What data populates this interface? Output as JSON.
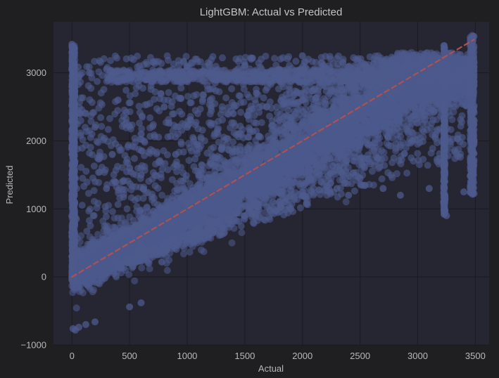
{
  "chart_data": {
    "type": "scatter",
    "title": "LightGBM: Actual vs Predicted",
    "xlabel": "Actual",
    "ylabel": "Predicted",
    "xlim": [
      -160,
      3620
    ],
    "ylim": [
      -1000,
      3750
    ],
    "xticks": [
      0,
      500,
      1000,
      1500,
      2000,
      2500,
      3000,
      3500
    ],
    "yticks": [
      -1000,
      0,
      1000,
      2000,
      3000
    ],
    "grid": true,
    "legend": "none",
    "colors": {
      "figure_background": "#1f1f21",
      "plot_background": "#262633",
      "grid": "#1a1a1f",
      "points": "#4d5a8c",
      "reference_line": "#b05050"
    },
    "reference_line": {
      "style": "dashed",
      "from": [
        0,
        0
      ],
      "to": [
        3490,
        3490
      ]
    },
    "series": [
      {
        "name": "",
        "points": [
          [
            0,
            3420
          ],
          [
            0,
            3300
          ],
          [
            0,
            3050
          ],
          [
            0,
            2800
          ],
          [
            0,
            2300
          ],
          [
            0,
            1900
          ],
          [
            0,
            1500
          ],
          [
            0,
            1200
          ],
          [
            0,
            900
          ],
          [
            0,
            600
          ],
          [
            0,
            300
          ],
          [
            0,
            0
          ],
          [
            10,
            -760
          ],
          [
            30,
            -780
          ],
          [
            60,
            -740
          ],
          [
            120,
            -700
          ],
          [
            200,
            -660
          ],
          [
            500,
            -440
          ],
          [
            600,
            -380
          ],
          [
            780,
            220
          ],
          [
            60,
            2950
          ],
          [
            150,
            3000
          ],
          [
            300,
            3050
          ],
          [
            450,
            2900
          ],
          [
            700,
            3000
          ],
          [
            1000,
            3100
          ],
          [
            1250,
            2900
          ],
          [
            1500,
            3100
          ],
          [
            1800,
            3050
          ],
          [
            2000,
            3250
          ],
          [
            2300,
            3000
          ],
          [
            2600,
            2950
          ],
          [
            2900,
            3100
          ],
          [
            3050,
            3200
          ],
          [
            200,
            2200
          ],
          [
            350,
            1800
          ],
          [
            500,
            1600
          ],
          [
            400,
            2600
          ],
          [
            600,
            2100
          ],
          [
            800,
            2500
          ],
          [
            1000,
            2200
          ],
          [
            1200,
            2600
          ],
          [
            1400,
            2400
          ],
          [
            1600,
            2700
          ],
          [
            1800,
            2300
          ],
          [
            2000,
            2600
          ],
          [
            2200,
            2800
          ],
          [
            2400,
            2500
          ],
          [
            300,
            1300
          ],
          [
            600,
            1500
          ],
          [
            900,
            1800
          ],
          [
            1100,
            1500
          ],
          [
            1300,
            1900
          ],
          [
            1500,
            1700
          ],
          [
            600,
            450
          ],
          [
            900,
            550
          ],
          [
            1200,
            700
          ],
          [
            1500,
            900
          ],
          [
            1800,
            1100
          ],
          [
            2000,
            1250
          ],
          [
            2300,
            1300
          ],
          [
            2500,
            1450
          ],
          [
            2700,
            1300
          ],
          [
            2850,
            1200
          ],
          [
            3100,
            1300
          ],
          [
            3250,
            900
          ],
          [
            3400,
            1250
          ],
          [
            1300,
            750
          ],
          [
            1900,
            1000
          ],
          [
            2400,
            1200
          ],
          [
            3230,
            3400
          ],
          [
            3230,
            2800
          ],
          [
            3230,
            2000
          ],
          [
            3230,
            1300
          ],
          [
            3230,
            920
          ],
          [
            3460,
            3500
          ],
          [
            3460,
            3100
          ],
          [
            3460,
            2500
          ],
          [
            3460,
            2000
          ],
          [
            3460,
            1600
          ],
          [
            3460,
            1400
          ],
          [
            3460,
            1250
          ]
        ]
      }
    ]
  }
}
